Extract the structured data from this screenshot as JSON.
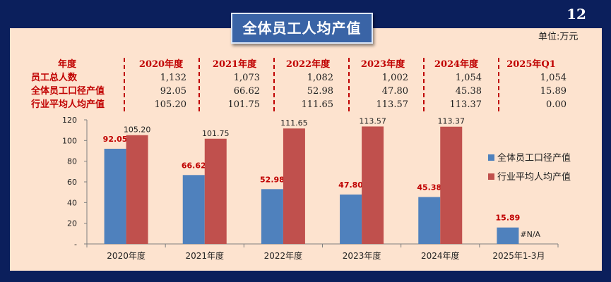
{
  "slide": {
    "title": "全体员工人均产值",
    "page_number": "12",
    "unit": "单位:万元"
  },
  "table": {
    "headers": [
      "年度",
      "2020年度",
      "2021年度",
      "2022年度",
      "2023年度",
      "2024年度",
      "2025年Q1"
    ],
    "rows": [
      {
        "label": "员工总人数",
        "values": [
          "1,132",
          "1,073",
          "1,082",
          "1,002",
          "1,054",
          "1,054"
        ]
      },
      {
        "label": "全体员工口径产值",
        "values": [
          "92.05",
          "66.62",
          "52.98",
          "47.80",
          "45.38",
          "15.89"
        ]
      },
      {
        "label": "行业平均人均产值",
        "values": [
          "105.20",
          "101.75",
          "111.65",
          "113.57",
          "113.37",
          "0.00"
        ]
      }
    ]
  },
  "colors": {
    "series1": "#4f81bd",
    "series2": "#c0504d",
    "background": "#0b1f5c",
    "panel": "#fde3cf",
    "title_box": "#3a64a6",
    "accent_text": "#c00000"
  },
  "chart_data": {
    "type": "bar",
    "categories": [
      "2020年度",
      "2021年度",
      "2022年度",
      "2023年度",
      "2024年度",
      "2025年1-3月"
    ],
    "series": [
      {
        "name": "全体员工口径产值",
        "values": [
          92.05,
          66.62,
          52.98,
          47.8,
          45.38,
          15.89
        ],
        "labels": [
          "92.05",
          "66.62",
          "52.98",
          "47.80",
          "45.38",
          "15.89"
        ]
      },
      {
        "name": "行业平均人均产值",
        "values": [
          105.2,
          101.75,
          111.65,
          113.57,
          113.37,
          null
        ],
        "labels": [
          "105.20",
          "101.75",
          "111.65",
          "113.57",
          "113.37",
          "#N/A"
        ]
      }
    ],
    "ylim": [
      0,
      120
    ],
    "yticks": [
      0,
      20,
      40,
      60,
      80,
      100,
      120
    ],
    "ytick_labels": [
      "-",
      "20",
      "40",
      "60",
      "80",
      "100",
      "120"
    ],
    "grid": false,
    "legend_position": "right"
  }
}
